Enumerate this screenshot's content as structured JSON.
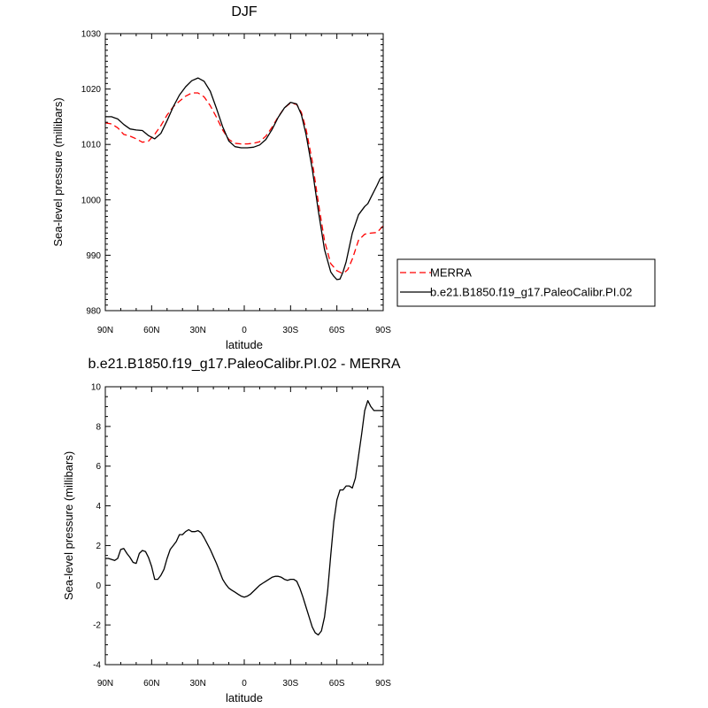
{
  "chart_data": [
    {
      "type": "line",
      "title": "DJF",
      "xlabel": "latitude",
      "ylabel": "Sea-level pressure (millibars)",
      "xlim": [
        90,
        -90
      ],
      "ylim": [
        980,
        1030
      ],
      "x_ticks": [
        {
          "value": 90,
          "label": "90N"
        },
        {
          "value": 60,
          "label": "60N"
        },
        {
          "value": 30,
          "label": "30N"
        },
        {
          "value": 0,
          "label": "0"
        },
        {
          "value": -30,
          "label": "30S"
        },
        {
          "value": -60,
          "label": "60S"
        },
        {
          "value": -90,
          "label": "90S"
        }
      ],
      "y_ticks": [
        {
          "value": 980,
          "label": "980"
        },
        {
          "value": 990,
          "label": "990"
        },
        {
          "value": 1000,
          "label": "1000"
        },
        {
          "value": 1010,
          "label": "1010"
        },
        {
          "value": 1020,
          "label": "1020"
        },
        {
          "value": 1030,
          "label": "1030"
        }
      ],
      "legend": {
        "position": "right"
      },
      "series": [
        {
          "name": "MERRA",
          "color": "#ff0000",
          "style": "dashed",
          "x": [
            90,
            86,
            82,
            78,
            74,
            70,
            66,
            62,
            58,
            54,
            50,
            46,
            42,
            38,
            34,
            30,
            26,
            22,
            18,
            14,
            10,
            6,
            2,
            -2,
            -6,
            -10,
            -14,
            -18,
            -22,
            -26,
            -30,
            -34,
            -37,
            -40,
            -44,
            -48,
            -52,
            -56,
            -60,
            -63,
            -65,
            -67,
            -70,
            -74,
            -78,
            -82,
            -86,
            -90
          ],
          "y": [
            1013.9,
            1013.7,
            1013.0,
            1011.8,
            1011.5,
            1011.0,
            1010.4,
            1010.6,
            1011.8,
            1013.4,
            1015.3,
            1016.8,
            1017.8,
            1018.7,
            1019.3,
            1019.3,
            1018.6,
            1017.0,
            1014.9,
            1012.6,
            1010.9,
            1010.2,
            1010.1,
            1010.1,
            1010.2,
            1010.5,
            1011.5,
            1013.1,
            1015.0,
            1016.6,
            1017.5,
            1017.2,
            1015.8,
            1012.8,
            1007.0,
            999.5,
            992.6,
            988.5,
            987.2,
            986.8,
            986.9,
            987.4,
            989.3,
            992.7,
            993.8,
            994.0,
            994.1,
            995.3
          ]
        },
        {
          "name": "b.e21.B1850.f19_g17.PaleoCalibr.PI.02",
          "color": "#000000",
          "style": "solid",
          "x": [
            90,
            86,
            82,
            78,
            74,
            70,
            66,
            62,
            58,
            54,
            50,
            46,
            42,
            38,
            34,
            30,
            26,
            22,
            18,
            14,
            10,
            6,
            2,
            -2,
            -6,
            -10,
            -14,
            -18,
            -22,
            -26,
            -30,
            -34,
            -37,
            -40,
            -44,
            -48,
            -52,
            -56,
            -58,
            -60,
            -62,
            -64,
            -66,
            -70,
            -74,
            -78,
            -80,
            -82,
            -86,
            -88,
            -90
          ],
          "y": [
            1015.0,
            1015.0,
            1014.6,
            1013.6,
            1012.8,
            1012.6,
            1012.5,
            1011.6,
            1011.0,
            1012.0,
            1014.3,
            1016.8,
            1018.9,
            1020.4,
            1021.5,
            1022.0,
            1021.4,
            1019.6,
            1016.5,
            1013.2,
            1010.6,
            1009.6,
            1009.4,
            1009.4,
            1009.5,
            1009.9,
            1010.9,
            1012.7,
            1014.9,
            1016.6,
            1017.6,
            1017.3,
            1015.4,
            1011.8,
            1005.6,
            998.0,
            991.0,
            987.0,
            986.2,
            985.6,
            985.7,
            987.0,
            988.8,
            994.0,
            997.3,
            998.8,
            999.3,
            1000.4,
            1002.6,
            1003.8,
            1004.2
          ]
        }
      ]
    },
    {
      "type": "line",
      "title": "b.e21.B1850.f19_g17.PaleoCalibr.PI.02 - MERRA",
      "xlabel": "latitude",
      "ylabel": "Sea-level pressure (millibars)",
      "xlim": [
        90,
        -90
      ],
      "ylim": [
        -4,
        10
      ],
      "x_ticks": [
        {
          "value": 90,
          "label": "90N"
        },
        {
          "value": 60,
          "label": "60N"
        },
        {
          "value": 30,
          "label": "30N"
        },
        {
          "value": 0,
          "label": "0"
        },
        {
          "value": -30,
          "label": "30S"
        },
        {
          "value": -60,
          "label": "60S"
        },
        {
          "value": -90,
          "label": "90S"
        }
      ],
      "y_ticks": [
        {
          "value": -4,
          "label": "-4"
        },
        {
          "value": -2,
          "label": "-2"
        },
        {
          "value": 0,
          "label": "0"
        },
        {
          "value": 2,
          "label": "2"
        },
        {
          "value": 4,
          "label": "4"
        },
        {
          "value": 6,
          "label": "6"
        },
        {
          "value": 8,
          "label": "8"
        },
        {
          "value": 10,
          "label": "10"
        }
      ],
      "series": [
        {
          "color": "#000000",
          "style": "solid",
          "x": [
            90,
            88,
            86,
            84,
            82,
            80,
            78,
            76,
            74,
            72,
            70,
            68,
            66,
            64,
            62,
            60,
            58,
            56,
            54,
            52,
            50,
            48,
            46,
            44,
            42,
            40,
            38,
            36,
            34,
            32,
            30,
            28,
            26,
            24,
            22,
            20,
            18,
            16,
            14,
            12,
            10,
            8,
            6,
            4,
            2,
            0,
            -2,
            -4,
            -6,
            -8,
            -10,
            -12,
            -14,
            -16,
            -18,
            -20,
            -22,
            -24,
            -26,
            -28,
            -30,
            -32,
            -34,
            -36,
            -38,
            -40,
            -42,
            -44,
            -46,
            -48,
            -50,
            -52,
            -54,
            -56,
            -58,
            -60,
            -62,
            -64,
            -66,
            -68,
            -70,
            -72,
            -74,
            -76,
            -78,
            -80,
            -82,
            -84,
            -86,
            -88,
            -90
          ],
          "y": [
            1.35,
            1.35,
            1.3,
            1.25,
            1.35,
            1.8,
            1.85,
            1.6,
            1.4,
            1.15,
            1.1,
            1.6,
            1.75,
            1.7,
            1.4,
            0.95,
            0.3,
            0.3,
            0.5,
            0.8,
            1.35,
            1.8,
            2.0,
            2.2,
            2.55,
            2.55,
            2.7,
            2.8,
            2.7,
            2.7,
            2.75,
            2.65,
            2.4,
            2.1,
            1.8,
            1.45,
            1.1,
            0.7,
            0.3,
            0.05,
            -0.15,
            -0.25,
            -0.35,
            -0.45,
            -0.55,
            -0.6,
            -0.55,
            -0.45,
            -0.3,
            -0.15,
            0.0,
            0.1,
            0.2,
            0.3,
            0.4,
            0.45,
            0.45,
            0.4,
            0.3,
            0.25,
            0.3,
            0.3,
            0.2,
            -0.15,
            -0.6,
            -1.1,
            -1.6,
            -2.1,
            -2.4,
            -2.5,
            -2.3,
            -1.6,
            -0.3,
            1.5,
            3.2,
            4.3,
            4.8,
            4.8,
            5.0,
            5.0,
            4.9,
            5.4,
            6.5,
            7.6,
            8.8,
            9.3,
            9.0,
            8.8,
            8.8,
            8.8,
            8.8
          ]
        }
      ]
    }
  ]
}
